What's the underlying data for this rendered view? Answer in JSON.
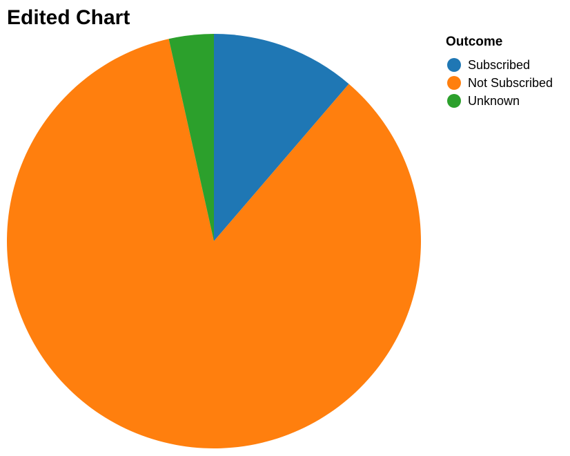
{
  "chart_data": {
    "type": "pie",
    "title": "Edited Chart",
    "legend_title": "Outcome",
    "legend_position": "top-right",
    "categories": [
      "Subscribed",
      "Not Subscribed",
      "Unknown"
    ],
    "values": [
      11.3,
      85.2,
      3.5
    ],
    "colors": [
      "#1f77b4",
      "#ff7f0e",
      "#2ca02c"
    ]
  }
}
